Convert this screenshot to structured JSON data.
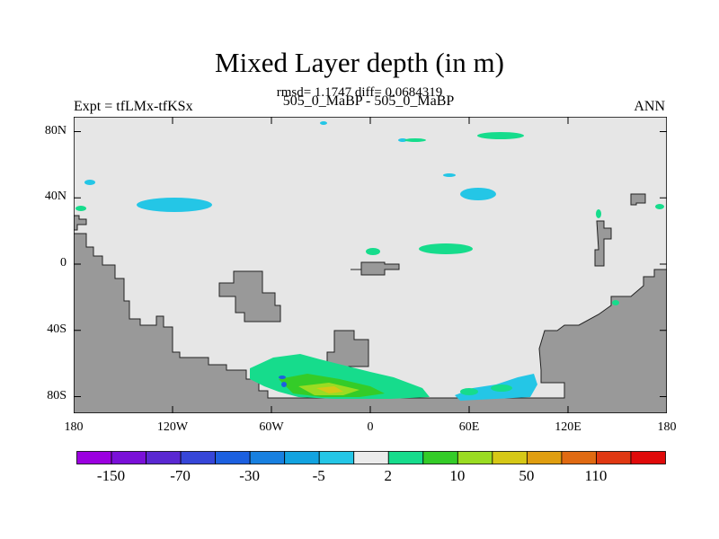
{
  "title": "Mixed Layer depth (in m)",
  "subtitle": "rmsd= 1.1747 diff= 0.0684319",
  "left_label": "Expt = tfLMx-tfKSx",
  "center_label": "505_0_MaBP - 505_0_MaBP",
  "right_label": "ANN",
  "colors": {
    "land": "#999999",
    "ocean": "#e6e6e6"
  },
  "chart_data": {
    "type": "heatmap",
    "map_projection": "cylindrical-equidistant",
    "lon_range": [
      -180,
      180
    ],
    "lat_range": [
      -90,
      90
    ],
    "y_ticks": [
      "80N",
      "40N",
      "0",
      "40S",
      "80S"
    ],
    "x_ticks": [
      "180",
      "120W",
      "60W",
      "0",
      "60E",
      "120E",
      "180"
    ],
    "colorbar": {
      "colors": [
        "#9b00e0",
        "#7a10d8",
        "#5a28d2",
        "#3646d8",
        "#1c60e0",
        "#1880e0",
        "#12a3e0",
        "#24c6e6",
        "#ebebeb",
        "#16dc8c",
        "#34cc28",
        "#9adc22",
        "#d6c816",
        "#e09e10",
        "#e06a12",
        "#e03812",
        "#e00a0a"
      ],
      "labels": [
        "-150",
        "-70",
        "-30",
        "-5",
        "2",
        "10",
        "50",
        "110"
      ],
      "label_after_box": [
        1,
        3,
        5,
        7,
        9,
        11,
        13,
        15
      ]
    }
  }
}
